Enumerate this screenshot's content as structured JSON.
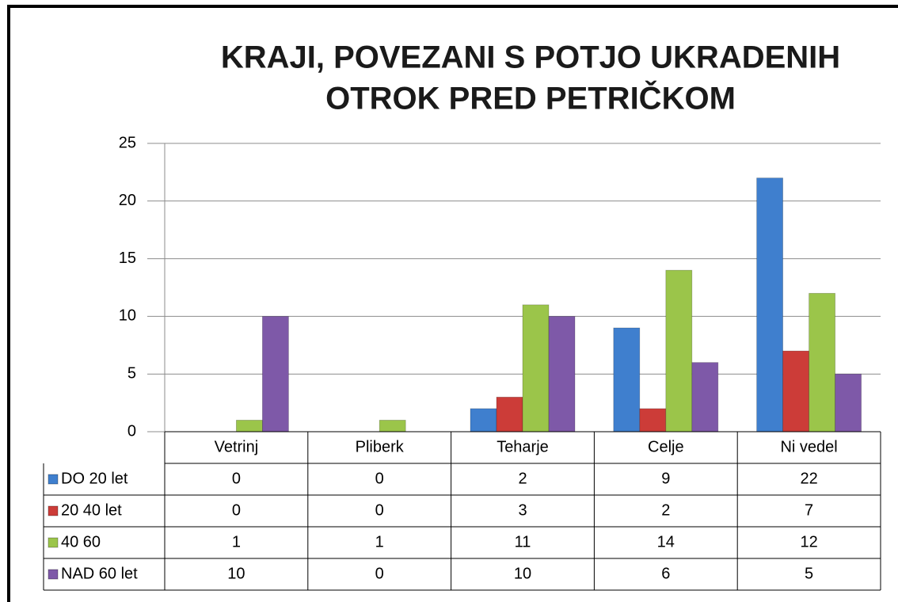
{
  "chart_data": {
    "type": "bar",
    "title": [
      "KRAJI, POVEZANI S POTJO UKRADENIH",
      "OTROK PRED PETRIČKOM"
    ],
    "categories": [
      "Vetrinj",
      "Pliberk",
      "Teharje",
      "Celje",
      "Ni vedel"
    ],
    "series": [
      {
        "name": "DO 20 let",
        "color": "#3f7fce",
        "values": [
          0,
          0,
          2,
          9,
          22
        ]
      },
      {
        "name": "20 40 let",
        "color": "#cc3c38",
        "values": [
          0,
          0,
          3,
          2,
          7
        ]
      },
      {
        "name": "40 60",
        "color": "#9bc54a",
        "values": [
          1,
          1,
          11,
          14,
          12
        ]
      },
      {
        "name": "NAD 60 let",
        "color": "#7e59a8",
        "values": [
          10,
          0,
          10,
          6,
          5
        ]
      }
    ],
    "ylim": [
      0,
      25
    ],
    "yticks": [
      0,
      5,
      10,
      15,
      20,
      25
    ],
    "grid": true
  }
}
